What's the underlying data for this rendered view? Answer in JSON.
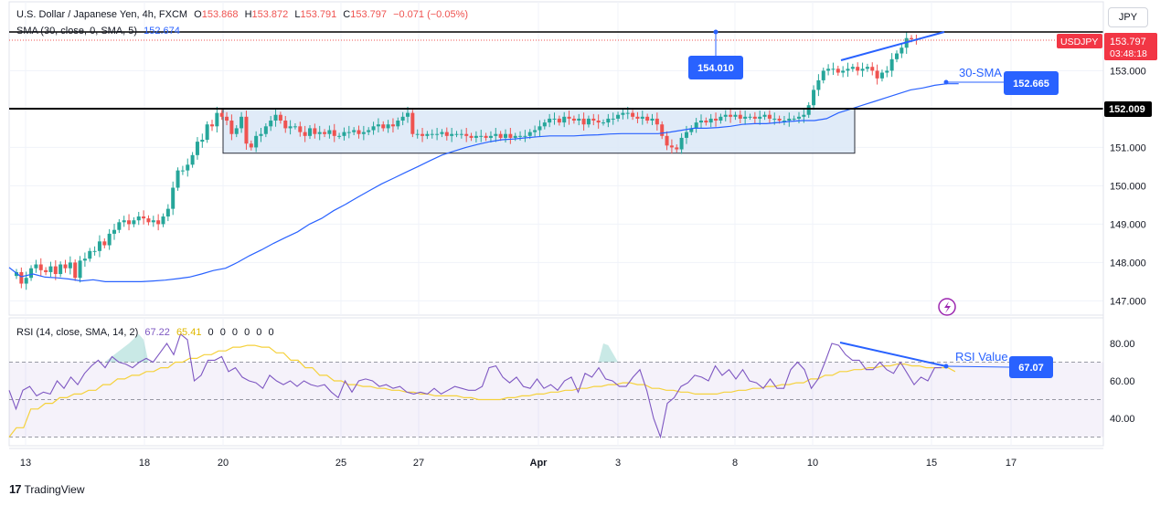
{
  "header": {
    "symbol": "U.S. Dollar / Japanese Yen, 4h, FXCM",
    "open_label": "O",
    "open": "153.868",
    "high_label": "H",
    "high": "153.872",
    "low_label": "L",
    "low": "153.791",
    "close_label": "C",
    "close": "153.797",
    "change": "−0.071 (−0.05%)",
    "sma_label": "SMA (30, close, 0, SMA, 5)",
    "sma_value": "152.674"
  },
  "currency_button": "JPY",
  "price_badge": {
    "ticker": "USDJPY",
    "price": "153.797",
    "countdown": "03:48:18"
  },
  "annotations": {
    "high_callout": "154.010",
    "sma_callout_label": "30-SMA",
    "sma_callout_value": "152.665",
    "support_value": "152.009",
    "rsi_callout_label": "RSI Value",
    "rsi_callout_value": "67.07"
  },
  "rsi_header": {
    "label": "RSI (14, close, SMA, 14, 2)",
    "rsi_value": "67.22",
    "sma_value": "65.41",
    "extras": [
      "0",
      "0",
      "0",
      "0",
      "0",
      "0"
    ]
  },
  "branding": "TradingView",
  "colors": {
    "bull": "#26a69a",
    "bear": "#ef5350",
    "sma": "#2962ff",
    "rsi": "#7e57c2",
    "rsi_ma": "#f5d13b",
    "box_fill": "#dbe7f7",
    "accent": "#2962ff"
  },
  "chart_data": {
    "type": "candlestick",
    "price_axis": {
      "ticks": [
        "153.000",
        "152.000",
        "151.000",
        "150.000",
        "149.000",
        "148.000",
        "147.000"
      ],
      "range": [
        146.6,
        154.6
      ]
    },
    "x_axis": {
      "ticks": [
        "13",
        "18",
        "20",
        "25",
        "27",
        "Apr",
        "3",
        "8",
        "10",
        "15",
        "17"
      ]
    },
    "rsi_axis": {
      "ticks": [
        "80.00",
        "60.00",
        "40.00"
      ],
      "range": [
        25,
        92
      ],
      "bands": [
        70,
        50,
        30
      ]
    },
    "horizontal_lines": [
      154.01,
      152.009
    ],
    "consolidation_box": {
      "from": "20",
      "to": "10",
      "low": 150.85,
      "high": 152.0
    },
    "close_series": [
      147.75,
      147.45,
      147.6,
      147.85,
      147.95,
      147.8,
      147.75,
      147.9,
      147.7,
      147.95,
      147.85,
      148.0,
      147.6,
      148.05,
      148.1,
      148.3,
      148.3,
      148.55,
      148.45,
      148.75,
      148.85,
      149.05,
      149.1,
      149.0,
      149.1,
      149.2,
      149.15,
      149.05,
      149.1,
      149.0,
      149.2,
      149.4,
      149.95,
      150.4,
      150.4,
      150.55,
      150.8,
      151.15,
      151.2,
      151.6,
      151.55,
      151.9,
      151.8,
      151.7,
      151.35,
      151.5,
      151.8,
      151.1,
      151.0,
      151.3,
      151.35,
      151.55,
      151.7,
      151.85,
      151.7,
      151.5,
      151.55,
      151.55,
      151.4,
      151.3,
      151.5,
      151.35,
      151.4,
      151.35,
      151.45,
      151.3,
      151.3,
      151.4,
      151.4,
      151.45,
      151.35,
      151.4,
      151.45,
      151.55,
      151.6,
      151.5,
      151.6,
      151.55,
      151.7,
      151.8,
      151.9,
      151.35,
      151.35,
      151.3,
      151.35,
      151.35,
      151.35,
      151.4,
      151.3,
      151.35,
      151.35,
      151.35,
      151.3,
      151.25,
      151.3,
      151.3,
      151.25,
      151.3,
      151.35,
      151.25,
      151.35,
      151.25,
      151.3,
      151.3,
      151.3,
      151.4,
      151.45,
      151.55,
      151.65,
      151.75,
      151.75,
      151.65,
      151.8,
      151.75,
      151.7,
      151.75,
      151.6,
      151.75,
      151.7,
      151.65,
      151.65,
      151.75,
      151.75,
      151.85,
      151.9,
      151.9,
      151.8,
      151.75,
      151.8,
      151.7,
      151.75,
      151.6,
      151.3,
      151.05,
      151.0,
      150.95,
      151.25,
      151.4,
      151.5,
      151.65,
      151.7,
      151.65,
      151.75,
      151.7,
      151.8,
      151.85,
      151.8,
      151.85,
      151.75,
      151.8,
      151.8,
      151.75,
      151.8,
      151.85,
      151.75,
      151.75,
      151.7,
      151.7,
      151.75,
      151.75,
      151.8,
      151.85,
      152.1,
      152.5,
      152.75,
      153.0,
      153.05,
      153.05,
      152.95,
      153.0,
      153.05,
      153.1,
      153.0,
      153.05,
      153.1,
      153.0,
      152.8,
      152.95,
      153.0,
      153.3,
      153.45,
      153.6,
      153.85,
      153.82,
      153.8
    ],
    "sma30": [
      [
        147.87,
        147.63
      ],
      [
        147.7,
        147.62
      ],
      [
        147.6,
        147.57
      ],
      [
        147.52,
        147.55
      ],
      [
        147.5,
        147.5
      ],
      [
        147.5,
        147.5
      ],
      [
        147.52,
        147.54
      ],
      [
        147.58,
        147.62
      ],
      [
        147.7,
        147.79
      ],
      [
        147.85,
        148.0
      ],
      [
        148.18,
        148.33
      ],
      [
        148.5,
        148.65
      ],
      [
        148.8,
        149.0
      ],
      [
        149.15,
        149.35
      ],
      [
        149.52,
        149.7
      ],
      [
        149.88,
        150.05
      ],
      [
        150.2,
        150.35
      ],
      [
        150.5,
        150.65
      ],
      [
        150.8,
        150.9
      ],
      [
        151.0,
        151.08
      ],
      [
        151.15,
        151.2
      ],
      [
        151.22,
        151.25
      ],
      [
        151.28,
        151.3
      ],
      [
        151.3,
        151.3
      ],
      [
        151.32,
        151.33
      ],
      [
        151.35,
        151.36
      ],
      [
        151.36,
        151.36
      ],
      [
        151.36,
        151.4
      ],
      [
        151.45,
        151.5
      ],
      [
        151.5,
        151.52
      ],
      [
        151.55,
        151.6
      ],
      [
        151.62,
        151.62
      ],
      [
        151.65,
        151.68
      ],
      [
        151.7,
        151.7
      ],
      [
        151.75,
        151.9
      ],
      [
        152.0,
        152.1
      ],
      [
        152.2,
        152.3
      ],
      [
        152.4,
        152.5
      ],
      [
        152.55,
        152.62
      ],
      [
        152.66,
        152.66
      ]
    ],
    "rsi": [
      55,
      45,
      55,
      57,
      52,
      54,
      53,
      60,
      56,
      62,
      58,
      64,
      68,
      71,
      67,
      73,
      70,
      69,
      67,
      70,
      72,
      70,
      75,
      80,
      74,
      85,
      82,
      60,
      63,
      71,
      71,
      73,
      65,
      67,
      62,
      60,
      59,
      56,
      63,
      60,
      58,
      60,
      57,
      60,
      58,
      57,
      58,
      54,
      51,
      60,
      54,
      60,
      61,
      60,
      57,
      58,
      56,
      57,
      54,
      53,
      54,
      53,
      56,
      53,
      55,
      57,
      56,
      55,
      55,
      57,
      67,
      68,
      62,
      59,
      62,
      57,
      56,
      61,
      56,
      58,
      55,
      60,
      62,
      54,
      64,
      62,
      67,
      61,
      60,
      57,
      57,
      62,
      66,
      55,
      40,
      30,
      48,
      51,
      57,
      59,
      63,
      62,
      60,
      68,
      63,
      66,
      61,
      66,
      60,
      59,
      56,
      61,
      56,
      56,
      66,
      70,
      66,
      56,
      61,
      70,
      80,
      79,
      74,
      71,
      71,
      66,
      66,
      70,
      66,
      64,
      70,
      64,
      58,
      62,
      60,
      67,
      67
    ],
    "rsi_ma": [
      [
        30,
        35
      ],
      [
        35,
        45
      ],
      [
        45,
        48
      ],
      [
        48,
        51
      ],
      [
        51,
        53
      ],
      [
        53,
        55
      ],
      [
        55,
        58
      ],
      [
        58,
        61
      ],
      [
        61,
        63
      ],
      [
        63,
        65
      ],
      [
        65,
        67
      ],
      [
        67,
        70
      ],
      [
        70,
        72
      ],
      [
        72,
        74
      ],
      [
        74,
        76
      ],
      [
        76,
        78
      ],
      [
        78,
        79
      ],
      [
        79,
        78
      ],
      [
        78,
        75
      ],
      [
        75,
        71
      ],
      [
        71,
        67
      ],
      [
        67,
        63
      ],
      [
        63,
        60
      ],
      [
        60,
        58
      ],
      [
        58,
        57
      ],
      [
        57,
        56
      ],
      [
        56,
        55
      ],
      [
        55,
        54
      ],
      [
        54,
        53
      ],
      [
        53,
        52
      ],
      [
        52,
        52
      ],
      [
        52,
        51
      ],
      [
        51,
        50
      ],
      [
        50,
        50
      ],
      [
        50,
        51
      ],
      [
        51,
        52
      ],
      [
        52,
        53
      ],
      [
        53,
        54
      ],
      [
        54,
        55
      ],
      [
        55,
        56
      ],
      [
        56,
        57
      ],
      [
        57,
        58
      ],
      [
        58,
        59
      ],
      [
        59,
        58
      ],
      [
        58,
        56
      ],
      [
        56,
        55
      ],
      [
        55,
        54
      ],
      [
        54,
        53
      ],
      [
        53,
        53
      ],
      [
        53,
        54
      ],
      [
        54,
        55
      ],
      [
        55,
        56
      ],
      [
        56,
        57
      ],
      [
        57,
        58
      ],
      [
        58,
        59
      ],
      [
        59,
        61
      ],
      [
        61,
        63
      ],
      [
        63,
        65
      ],
      [
        65,
        66
      ],
      [
        66,
        67
      ],
      [
        67,
        68
      ],
      [
        68,
        69
      ],
      [
        69,
        68
      ],
      [
        68,
        67
      ],
      [
        67,
        67
      ],
      [
        67,
        65
      ]
    ]
  }
}
